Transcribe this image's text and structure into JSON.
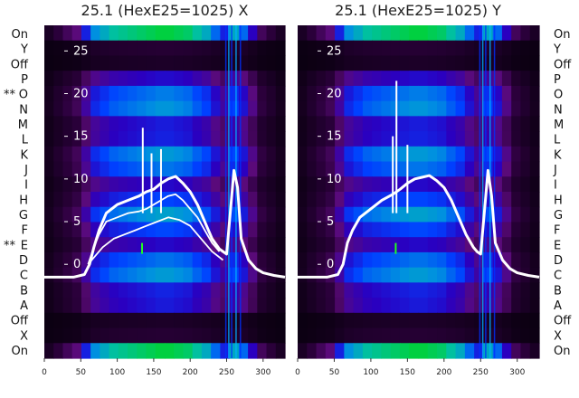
{
  "row_labels": [
    "On",
    "Y",
    "Off",
    "P",
    "O",
    "N",
    "M",
    "L",
    "K",
    "J",
    "I",
    "H",
    "G",
    "F",
    "E",
    "D",
    "C",
    "B",
    "A",
    "Off",
    "X",
    "On"
  ],
  "row_markers": {
    "4": "**",
    "14": "**"
  },
  "colormap": [
    "#0a0010",
    "#2a003a",
    "#5a0a7a",
    "#2a00c0",
    "#0040ff",
    "#0090e0",
    "#00c0a0",
    "#00d040",
    "#10f010"
  ],
  "chart_data": [
    {
      "type": "heatmap",
      "title": "25.1 (HexE25=1025) X",
      "xlim": [
        0,
        330
      ],
      "x_ticks": [
        0,
        50,
        100,
        150,
        200,
        250,
        300
      ],
      "ylim": [
        -11,
        28
      ],
      "y_ticks": [
        0,
        5,
        10,
        15,
        20,
        25
      ],
      "heat_intensity_by_column": [
        0.05,
        0.1,
        0.15,
        0.2,
        0.35,
        0.5,
        0.55,
        0.6,
        0.62,
        0.64,
        0.66,
        0.68,
        0.7,
        0.7,
        0.68,
        0.66,
        0.6,
        0.55,
        0.45,
        0.35,
        0.55,
        0.45,
        0.3,
        0.15,
        0.1,
        0.05
      ],
      "series": [
        {
          "x": [
            0,
            20,
            40,
            55,
            62,
            68,
            75,
            85,
            100,
            115,
            130,
            140,
            150,
            160,
            170,
            180,
            190,
            200,
            210,
            220,
            230,
            240,
            245,
            250,
            255,
            260,
            265,
            270,
            280,
            290,
            300,
            315,
            330
          ],
          "y": [
            -1.5,
            -1.5,
            -1.5,
            -1.2,
            0,
            2,
            4,
            6,
            7,
            7.5,
            8,
            8.5,
            8.8,
            9.5,
            10,
            10.3,
            9.5,
            8.5,
            7,
            5,
            3,
            1.8,
            1.5,
            1.2,
            6,
            11,
            9,
            3,
            0.5,
            -0.5,
            -1,
            -1.3,
            -1.5
          ]
        },
        {
          "x": [
            60,
            68,
            75,
            85,
            100,
            115,
            130,
            140,
            150,
            160,
            170,
            180,
            190,
            200,
            210,
            220,
            230,
            240
          ],
          "y": [
            0,
            2,
            3.5,
            5,
            5.5,
            6,
            6.2,
            6.5,
            7,
            7.5,
            8,
            8.2,
            7.5,
            6.5,
            5.5,
            4,
            2.5,
            1.5
          ]
        },
        {
          "x": [
            60,
            70,
            80,
            95,
            110,
            125,
            140,
            155,
            170,
            185,
            200,
            215,
            230,
            245
          ],
          "y": [
            0,
            1,
            2,
            3,
            3.5,
            4,
            4.5,
            5,
            5.5,
            5.2,
            4.5,
            3,
            1.5,
            0.5
          ]
        }
      ],
      "spikes": [
        {
          "x": 135,
          "y": 16
        },
        {
          "x": 147,
          "y": 13
        },
        {
          "x": 160,
          "y": 13.5
        }
      ]
    },
    {
      "type": "heatmap",
      "title": "25.1 (HexE25=1025) Y",
      "xlim": [
        0,
        330
      ],
      "x_ticks": [
        0,
        50,
        100,
        150,
        200,
        250,
        300
      ],
      "ylim": [
        -11,
        28
      ],
      "y_ticks": [
        0,
        5,
        10,
        15,
        20,
        25
      ],
      "heat_intensity_by_column": [
        0.05,
        0.1,
        0.15,
        0.2,
        0.35,
        0.5,
        0.55,
        0.6,
        0.62,
        0.64,
        0.66,
        0.68,
        0.7,
        0.7,
        0.68,
        0.66,
        0.6,
        0.55,
        0.45,
        0.35,
        0.55,
        0.45,
        0.3,
        0.15,
        0.1,
        0.05
      ],
      "series": [
        {
          "x": [
            0,
            20,
            40,
            55,
            62,
            68,
            75,
            85,
            100,
            115,
            130,
            140,
            150,
            160,
            170,
            180,
            190,
            200,
            210,
            220,
            230,
            240,
            245,
            250,
            255,
            260,
            265,
            270,
            280,
            290,
            300,
            315,
            330
          ],
          "y": [
            -1.5,
            -1.5,
            -1.5,
            -1.2,
            0,
            2.5,
            4,
            5.5,
            6.5,
            7.5,
            8.2,
            8.8,
            9.5,
            10,
            10.2,
            10.4,
            9.8,
            9,
            7.5,
            5.5,
            3.5,
            2,
            1.5,
            1.2,
            6,
            11,
            8,
            2.5,
            0.5,
            -0.5,
            -1,
            -1.3,
            -1.5
          ]
        }
      ],
      "spikes": [
        {
          "x": 130,
          "y": 15
        },
        {
          "x": 135,
          "y": 21.5
        },
        {
          "x": 150,
          "y": 14
        }
      ]
    }
  ]
}
